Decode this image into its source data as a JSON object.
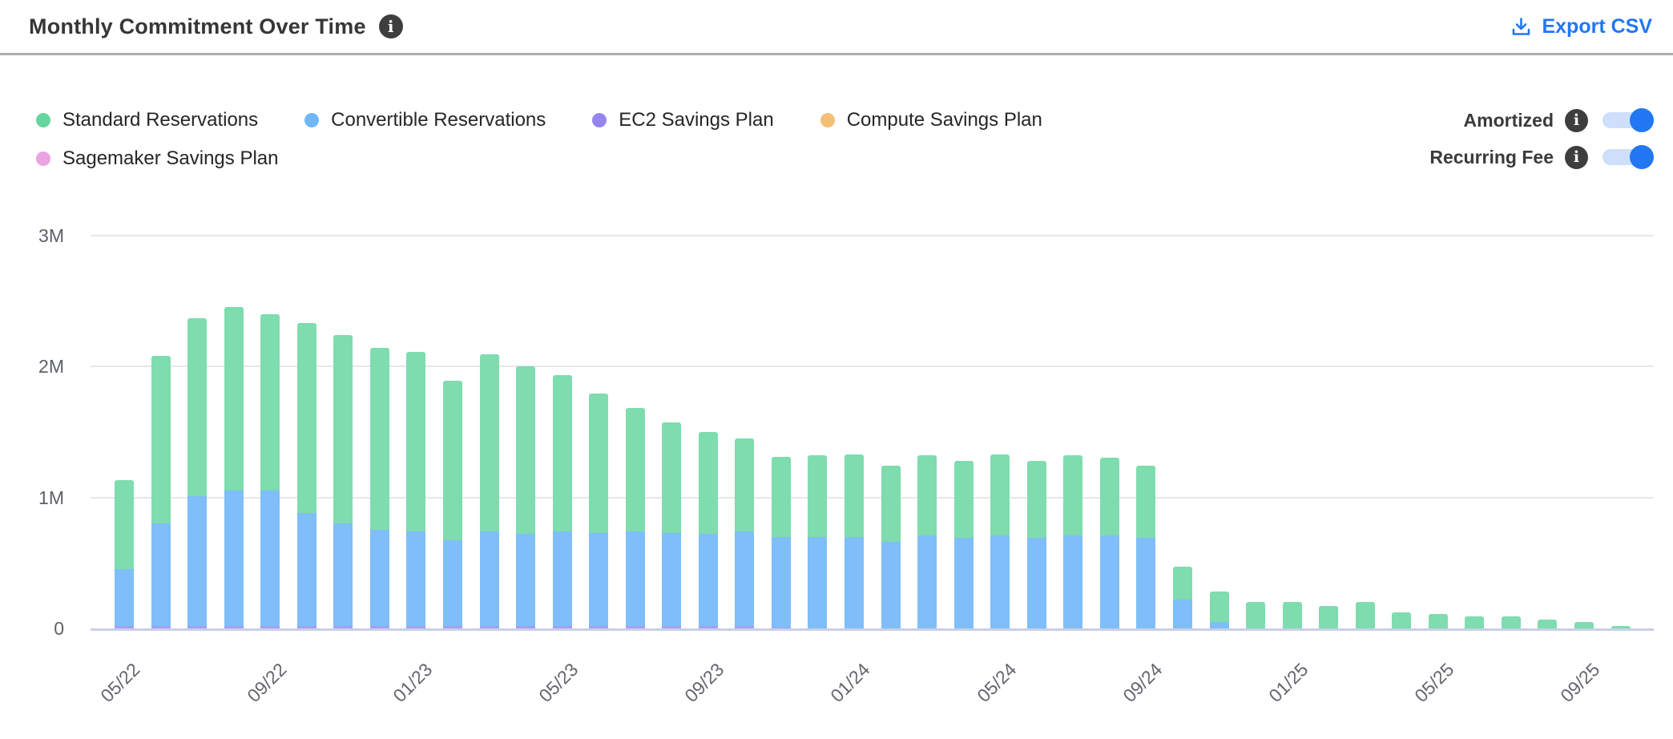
{
  "header": {
    "title": "Monthly Commitment Over Time",
    "export_label": "Export CSV"
  },
  "controls": {
    "toggles": [
      {
        "label": "Amortized",
        "state": "on"
      },
      {
        "label": "Recurring Fee",
        "state": "on"
      }
    ]
  },
  "colors": {
    "accent_blue": "#2277f2",
    "toggle_track": "#cddffb",
    "info_icon_bg": "#3e3e3e",
    "divider": "#aeaeae",
    "axis_line": "#c8d0e6",
    "gridline": "#e7e7ea",
    "axis_text": "#63666c"
  },
  "chart_data": {
    "type": "bar",
    "stacked": true,
    "unit": "USD, millions",
    "x": [
      "05/22",
      "06/22",
      "07/22",
      "08/22",
      "09/22",
      "10/22",
      "11/22",
      "12/22",
      "01/23",
      "02/23",
      "03/23",
      "04/23",
      "05/23",
      "06/23",
      "07/23",
      "08/23",
      "09/23",
      "10/23",
      "11/23",
      "12/23",
      "01/24",
      "02/24",
      "03/24",
      "04/24",
      "05/24",
      "06/24",
      "07/24",
      "08/24",
      "09/24",
      "10/24",
      "11/24",
      "12/24",
      "01/25",
      "02/25",
      "03/25",
      "04/25",
      "05/25",
      "06/25",
      "07/25",
      "08/25",
      "09/25",
      "10/25"
    ],
    "x_tick_every": 4,
    "x_tick_labels": [
      "05/22",
      "09/22",
      "01/23",
      "05/23",
      "09/23",
      "01/24",
      "05/24",
      "09/24",
      "01/25",
      "05/25",
      "09/25"
    ],
    "ylim": [
      0,
      3
    ],
    "yticks": [
      {
        "value": 0,
        "label": "0"
      },
      {
        "value": 1,
        "label": "1M"
      },
      {
        "value": 2,
        "label": "2M"
      },
      {
        "value": 3,
        "label": "3M"
      }
    ],
    "grid": true,
    "legend_position": "top-left",
    "stack_order_bottom_to_top": [
      "sagemaker",
      "compute",
      "ec2",
      "convertible",
      "standard"
    ],
    "series": [
      {
        "id": "standard",
        "name": "Standard Reservations",
        "color": "#7edcae",
        "dot_color": "#66d69f",
        "values": [
          0.68,
          1.28,
          1.36,
          1.4,
          1.35,
          1.45,
          1.44,
          1.39,
          1.37,
          1.22,
          1.35,
          1.28,
          1.19,
          1.06,
          0.94,
          0.84,
          0.78,
          0.71,
          0.61,
          0.62,
          0.63,
          0.58,
          0.61,
          0.59,
          0.62,
          0.59,
          0.61,
          0.59,
          0.55,
          0.25,
          0.23,
          0.2,
          0.2,
          0.17,
          0.2,
          0.12,
          0.11,
          0.09,
          0.09,
          0.07,
          0.05,
          0.02
        ]
      },
      {
        "id": "convertible",
        "name": "Convertible Reservations",
        "color": "#7fbef9",
        "dot_color": "#6fb7f7",
        "values": [
          0.43,
          0.78,
          0.99,
          1.03,
          1.03,
          0.86,
          0.78,
          0.73,
          0.72,
          0.65,
          0.72,
          0.7,
          0.72,
          0.71,
          0.72,
          0.71,
          0.7,
          0.72,
          0.69,
          0.7,
          0.7,
          0.66,
          0.71,
          0.69,
          0.71,
          0.69,
          0.71,
          0.71,
          0.69,
          0.22,
          0.05,
          0,
          0,
          0,
          0,
          0,
          0,
          0,
          0,
          0,
          0,
          0
        ]
      },
      {
        "id": "ec2",
        "name": "EC2 Savings Plan",
        "color": "#a79df3",
        "dot_color": "#9486ee",
        "values": [
          0.02,
          0.02,
          0.02,
          0.02,
          0.02,
          0.02,
          0.02,
          0.02,
          0.02,
          0.02,
          0.02,
          0.02,
          0.02,
          0.02,
          0.02,
          0.02,
          0.02,
          0.02,
          0.008,
          0,
          0,
          0,
          0,
          0,
          0,
          0,
          0,
          0,
          0,
          0,
          0,
          0,
          0,
          0,
          0,
          0,
          0,
          0,
          0,
          0,
          0,
          0
        ]
      },
      {
        "id": "compute",
        "name": "Compute Savings Plan",
        "color": "#f4bf76",
        "dot_color": "#f4bf76",
        "values": [
          0,
          0,
          0,
          0,
          0,
          0,
          0,
          0,
          0,
          0,
          0,
          0,
          0,
          0,
          0,
          0,
          0,
          0,
          0,
          0,
          0,
          0,
          0,
          0,
          0,
          0,
          0,
          0,
          0,
          0,
          0,
          0,
          0,
          0,
          0,
          0,
          0,
          0,
          0,
          0,
          0,
          0
        ]
      },
      {
        "id": "sagemaker",
        "name": "Sagemaker Savings Plan",
        "color": "#eba3e4",
        "dot_color": "#eba3e4",
        "values": [
          0,
          0,
          0,
          0,
          0,
          0,
          0,
          0,
          0,
          0,
          0,
          0,
          0,
          0,
          0,
          0,
          0,
          0,
          0,
          0,
          0,
          0,
          0,
          0,
          0,
          0,
          0,
          0,
          0,
          0,
          0,
          0,
          0,
          0,
          0,
          0,
          0,
          0,
          0,
          0,
          0,
          0
        ]
      }
    ]
  }
}
